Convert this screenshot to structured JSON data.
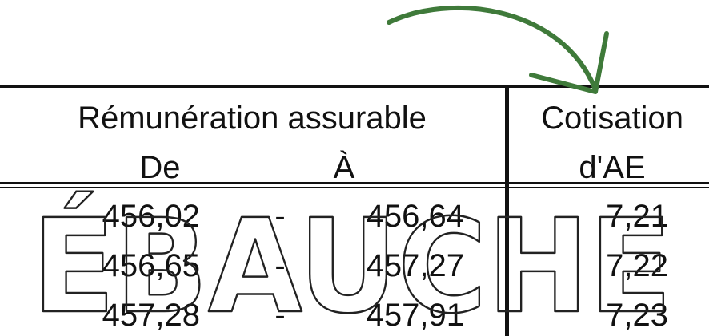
{
  "table": {
    "header": {
      "group_label": "Rémunération assurable",
      "from_label": "De",
      "to_label": "À",
      "contribution_label_line1": "Cotisation",
      "contribution_label_line2": "d'AE"
    },
    "rows": [
      {
        "from": "456,02",
        "separator": "-",
        "to": "456,64",
        "contribution": "7,21"
      },
      {
        "from": "456,65",
        "separator": "-",
        "to": "457,27",
        "contribution": "7,22"
      },
      {
        "from": "457,28",
        "separator": "-",
        "to": "457,91",
        "contribution": "7,23"
      }
    ]
  },
  "watermark": {
    "text": "ÉBAUCHE",
    "stroke_color": "#222222"
  },
  "annotation": {
    "arrow_color": "#3f7a3a"
  }
}
